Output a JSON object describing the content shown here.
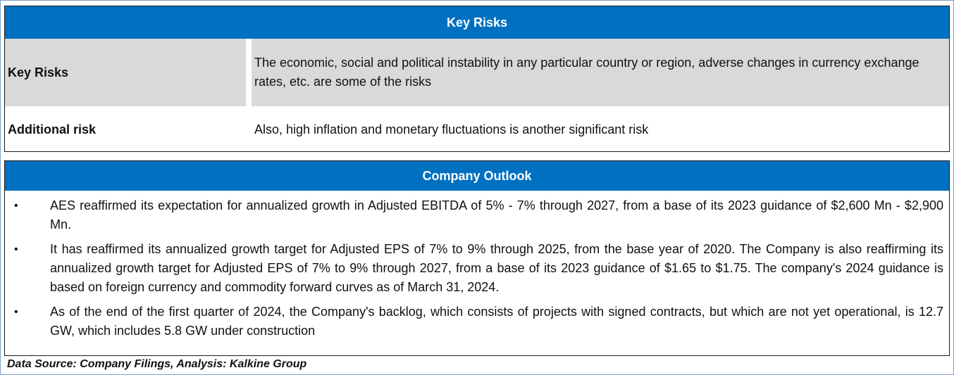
{
  "key_risks_table": {
    "header": "Key Risks",
    "rows": [
      {
        "label": "Key Risks",
        "text": "The economic, social and political instability in any particular country or region, adverse changes in currency exchange rates, etc. are some of the risks"
      },
      {
        "label": "Additional risk",
        "text": "Also, high inflation and monetary fluctuations is another significant risk"
      }
    ]
  },
  "company_outlook": {
    "header": "Company Outlook",
    "bullet_symbol": "•",
    "items": [
      "AES reaffirmed its expectation for annualized growth in Adjusted EBITDA of 5% - 7% through 2027, from a base of its 2023 guidance of $2,600 Mn - $2,900 Mn.",
      "It has reaffirmed its annualized growth target for Adjusted EPS of 7% to 9% through 2025, from the base year of 2020.  The Company is also reaffirming its annualized growth target for Adjusted EPS of 7% to 9% through 2027, from a base of its 2023 guidance of $1.65 to $1.75. The company's 2024 guidance is based on foreign currency and commodity forward curves as of March 31, 2024.",
      "As of the end of the first quarter of 2024, the Company's backlog, which consists of projects with signed contracts, but which are not yet operational, is 12.7 GW, which includes 5.8 GW under construction"
    ]
  },
  "footer": {
    "source": "Data Source: Company Filings, Analysis: Kalkine Group"
  },
  "colors": {
    "header_blue": "#0070c0",
    "row_gray": "#d9d9d9"
  }
}
